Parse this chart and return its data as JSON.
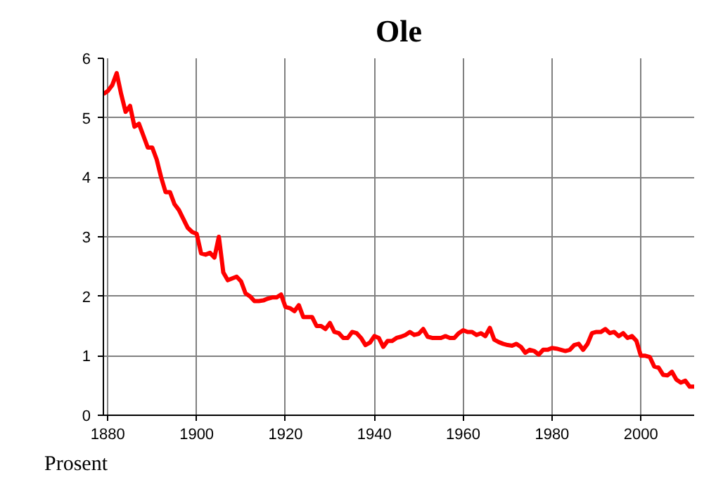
{
  "chart_data": {
    "type": "line",
    "title": "Ole",
    "ylabel": "Prosent",
    "x": [
      1879,
      1880,
      1881,
      1882,
      1883,
      1884,
      1885,
      1886,
      1887,
      1888,
      1889,
      1890,
      1891,
      1892,
      1893,
      1894,
      1895,
      1896,
      1897,
      1898,
      1899,
      1900,
      1901,
      1902,
      1903,
      1904,
      1905,
      1906,
      1907,
      1908,
      1909,
      1910,
      1911,
      1912,
      1913,
      1914,
      1915,
      1916,
      1917,
      1918,
      1919,
      1920,
      1921,
      1922,
      1923,
      1924,
      1925,
      1926,
      1927,
      1928,
      1929,
      1930,
      1931,
      1932,
      1933,
      1934,
      1935,
      1936,
      1937,
      1938,
      1939,
      1940,
      1941,
      1942,
      1943,
      1944,
      1945,
      1946,
      1947,
      1948,
      1949,
      1950,
      1951,
      1952,
      1953,
      1954,
      1955,
      1956,
      1957,
      1958,
      1959,
      1960,
      1961,
      1962,
      1963,
      1964,
      1965,
      1966,
      1967,
      1968,
      1969,
      1970,
      1971,
      1972,
      1973,
      1974,
      1975,
      1976,
      1977,
      1978,
      1979,
      1980,
      1981,
      1982,
      1983,
      1984,
      1985,
      1986,
      1987,
      1988,
      1989,
      1990,
      1991,
      1992,
      1993,
      1994,
      1995,
      1996,
      1997,
      1998,
      1999,
      2000,
      2001,
      2002,
      2003,
      2004,
      2005,
      2006,
      2007,
      2008,
      2009,
      2010,
      2011,
      2012
    ],
    "series": [
      {
        "color": "#ff0000",
        "values": [
          5.4,
          5.45,
          5.55,
          5.75,
          5.4,
          5.1,
          5.2,
          4.85,
          4.9,
          4.7,
          4.5,
          4.5,
          4.3,
          4.0,
          3.75,
          3.75,
          3.55,
          3.45,
          3.3,
          3.15,
          3.08,
          3.05,
          2.72,
          2.7,
          2.73,
          2.65,
          3.0,
          2.4,
          2.27,
          2.3,
          2.33,
          2.25,
          2.05,
          2.0,
          1.92,
          1.92,
          1.93,
          1.96,
          1.98,
          1.98,
          2.03,
          1.82,
          1.8,
          1.75,
          1.85,
          1.65,
          1.65,
          1.65,
          1.5,
          1.5,
          1.45,
          1.55,
          1.4,
          1.38,
          1.3,
          1.3,
          1.4,
          1.38,
          1.3,
          1.18,
          1.22,
          1.33,
          1.3,
          1.15,
          1.25,
          1.25,
          1.3,
          1.32,
          1.35,
          1.4,
          1.35,
          1.37,
          1.45,
          1.32,
          1.3,
          1.3,
          1.3,
          1.33,
          1.3,
          1.3,
          1.38,
          1.43,
          1.4,
          1.4,
          1.35,
          1.38,
          1.33,
          1.47,
          1.27,
          1.23,
          1.2,
          1.18,
          1.17,
          1.2,
          1.15,
          1.05,
          1.1,
          1.08,
          1.02,
          1.1,
          1.1,
          1.13,
          1.12,
          1.1,
          1.08,
          1.1,
          1.18,
          1.2,
          1.1,
          1.2,
          1.38,
          1.4,
          1.4,
          1.45,
          1.38,
          1.4,
          1.33,
          1.38,
          1.3,
          1.33,
          1.25,
          1.0,
          1.0,
          0.98,
          0.82,
          0.8,
          0.68,
          0.67,
          0.73,
          0.6,
          0.55,
          0.58,
          0.48,
          0.48
        ]
      }
    ],
    "xlim": [
      1879,
      2012
    ],
    "xticks": [
      1880,
      1900,
      1920,
      1940,
      1960,
      1980,
      2000
    ],
    "ylim": [
      0,
      6
    ],
    "yticks": [
      0,
      1,
      2,
      3,
      4,
      5,
      6
    ],
    "grid": true,
    "marker": "none",
    "line_style": "solid"
  }
}
